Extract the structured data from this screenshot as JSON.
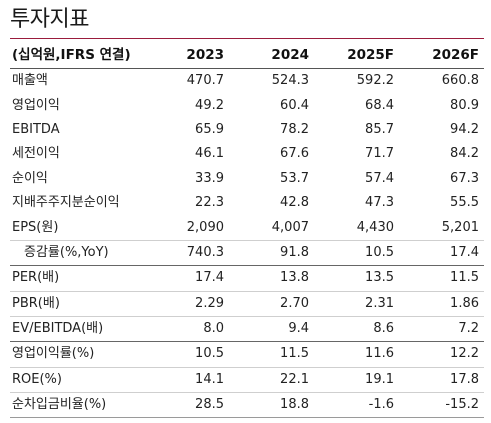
{
  "title": "투자지표",
  "accent_color": "#9a1b3c",
  "header": {
    "label": "(십억원,IFRS 연결)",
    "years": [
      "2023",
      "2024",
      "2025F",
      "2026F"
    ]
  },
  "rows": [
    {
      "label": "매출액",
      "values": [
        "470.7",
        "524.3",
        "592.2",
        "660.8"
      ]
    },
    {
      "label": "영업이익",
      "values": [
        "49.2",
        "60.4",
        "68.4",
        "80.9"
      ]
    },
    {
      "label": "EBITDA",
      "values": [
        "65.9",
        "78.2",
        "85.7",
        "94.2"
      ]
    },
    {
      "label": "세전이익",
      "values": [
        "46.1",
        "67.6",
        "71.7",
        "84.2"
      ]
    },
    {
      "label": "순이익",
      "values": [
        "33.9",
        "53.7",
        "57.4",
        "67.3"
      ]
    },
    {
      "label": "지배주주지분순이익",
      "values": [
        "22.3",
        "42.8",
        "47.3",
        "55.5"
      ]
    },
    {
      "label": "EPS(원)",
      "values": [
        "2,090",
        "4,007",
        "4,430",
        "5,201"
      ]
    },
    {
      "label": "증감률(%,YoY)",
      "values": [
        "740.3",
        "91.8",
        "10.5",
        "17.4"
      ]
    },
    {
      "label": "PER(배)",
      "values": [
        "17.4",
        "13.8",
        "13.5",
        "11.5"
      ]
    },
    {
      "label": "PBR(배)",
      "values": [
        "2.29",
        "2.70",
        "2.31",
        "1.86"
      ]
    },
    {
      "label": "EV/EBITDA(배)",
      "values": [
        "8.0",
        "9.4",
        "8.6",
        "7.2"
      ]
    },
    {
      "label": "영업이익률(%)",
      "values": [
        "10.5",
        "11.5",
        "11.6",
        "12.2"
      ]
    },
    {
      "label": "ROE(%)",
      "values": [
        "14.1",
        "22.1",
        "19.1",
        "17.8"
      ]
    },
    {
      "label": "순차입금비율(%)",
      "values": [
        "28.5",
        "18.8",
        "-1.6",
        "-15.2"
      ]
    }
  ]
}
